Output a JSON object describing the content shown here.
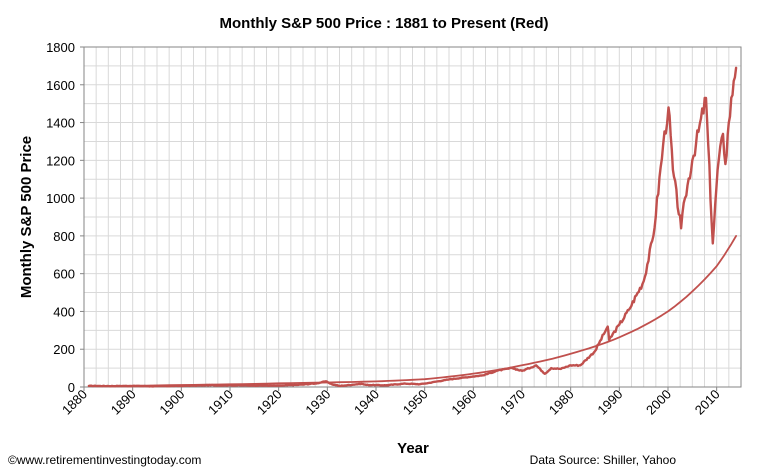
{
  "chart_data": {
    "type": "line",
    "title": "Monthly S&P 500 Price : 1881 to Present (Red)",
    "xlabel": "Year",
    "ylabel": "Monthly S&P 500 Price",
    "xlim": [
      1880,
      2015
    ],
    "ylim": [
      0,
      1800
    ],
    "x_ticks": [
      1880,
      1890,
      1900,
      1910,
      1920,
      1930,
      1940,
      1950,
      1960,
      1970,
      1980,
      1990,
      2000,
      2010
    ],
    "y_ticks": [
      0,
      200,
      400,
      600,
      800,
      1000,
      1200,
      1400,
      1600,
      1800
    ],
    "grid": true,
    "legend": "none",
    "series": [
      {
        "color": "#c0504d",
        "style": "jagged",
        "x": [
          1881,
          1885,
          1890,
          1895,
          1900,
          1905,
          1910,
          1915,
          1920,
          1925,
          1928,
          1929.7,
          1931,
          1932.5,
          1934,
          1937,
          1938,
          1942,
          1946,
          1949,
          1950,
          1955,
          1960,
          1962,
          1965,
          1968,
          1970,
          1972.9,
          1974.7,
          1976,
          1978,
          1980,
          1982,
          1985,
          1987.6,
          1987.9,
          1990,
          1992,
          1995,
          1997,
          1999,
          2000.1,
          2001,
          2002.7,
          2003.5,
          2005,
          2007.8,
          2009.2,
          2010.2,
          2011.3,
          2011.8,
          2012.5,
          2013.5,
          2014
        ],
        "y": [
          6,
          5,
          5,
          4,
          6,
          9,
          9,
          8,
          7,
          13,
          20,
          30,
          14,
          6,
          9,
          17,
          11,
          9,
          18,
          15,
          18,
          40,
          56,
          62,
          87,
          100,
          85,
          115,
          70,
          100,
          96,
          115,
          115,
          190,
          320,
          250,
          330,
          410,
          560,
          800,
          1280,
          1480,
          1150,
          840,
          1000,
          1200,
          1530,
          760,
          1150,
          1340,
          1180,
          1400,
          1620,
          1690
        ]
      },
      {
        "color": "#c0504d",
        "style": "smooth",
        "x": [
          1881,
          1900,
          1920,
          1940,
          1950,
          1960,
          1970,
          1980,
          1990,
          2000,
          2010,
          2014
        ],
        "y": [
          4.5,
          10.5,
          19.4,
          29.4,
          41.5,
          71,
          115,
          176,
          263,
          400,
          640,
          800
        ]
      }
    ],
    "footer_left": "©www.retirementinvestingtoday.com",
    "footer_right": "Data Source: Shiller, Yahoo"
  }
}
